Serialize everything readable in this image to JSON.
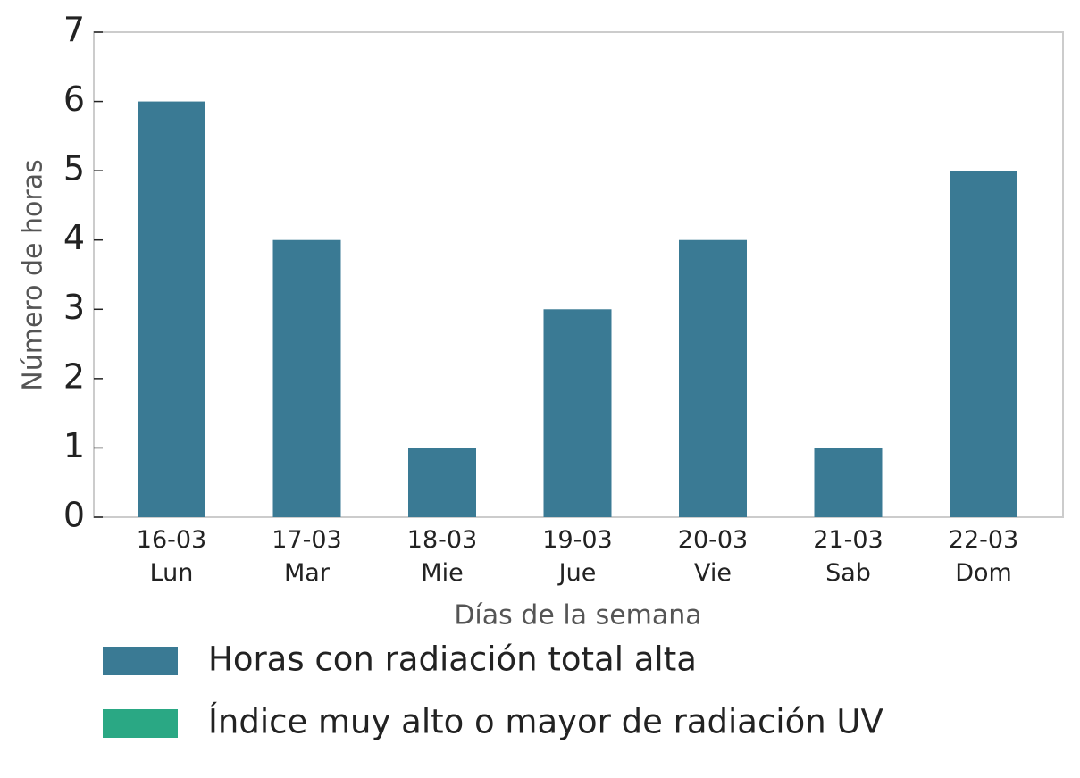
{
  "chart_data": {
    "type": "bar",
    "xlabel": "Días de la semana",
    "ylabel": "Número de horas",
    "categories": [
      "16-03\nLun",
      "17-03\nMar",
      "18-03\nMie",
      "19-03\nJue",
      "20-03\nVie",
      "21-03\nSab",
      "22-03\nDom"
    ],
    "series": [
      {
        "name": "Horas con radiación total alta",
        "color": "#3a7a94",
        "values": [
          6,
          4,
          1,
          3,
          4,
          1,
          5
        ]
      },
      {
        "name": "Índice muy alto o mayor de radiación UV",
        "color": "#2aa884",
        "values": [
          0,
          0,
          0,
          0,
          0,
          0,
          0
        ]
      }
    ],
    "ylim": [
      0,
      7
    ],
    "yticks": [
      0,
      1,
      2,
      3,
      4,
      5,
      6,
      7
    ],
    "grid": false
  }
}
